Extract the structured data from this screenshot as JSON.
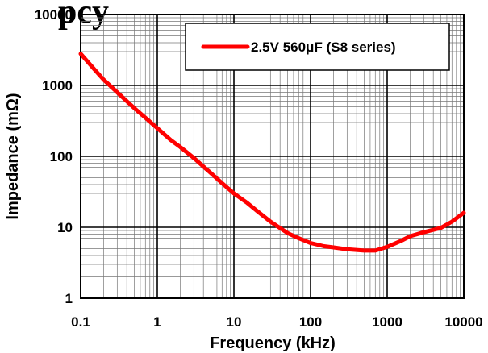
{
  "chart_data": {
    "type": "line",
    "title_fragment": "pcy",
    "xlabel": "Frequency (kHz)",
    "ylabel": "Impedance (mΩ)",
    "x_scale": "log",
    "y_scale": "log",
    "xlim": [
      0.1,
      10000
    ],
    "ylim": [
      1,
      10000
    ],
    "x_ticks": [
      "0.1",
      "1",
      "10",
      "100",
      "1000",
      "10000"
    ],
    "y_ticks": [
      "1",
      "10",
      "100",
      "1000",
      "10000"
    ],
    "grid": true,
    "legend_position": "top-right",
    "series": [
      {
        "name": "2.5V 560μF (S8 series)",
        "color": "#ff0000",
        "x": [
          0.1,
          0.15,
          0.2,
          0.3,
          0.5,
          0.7,
          1,
          1.5,
          2,
          3,
          5,
          7,
          10,
          15,
          20,
          30,
          50,
          70,
          100,
          150,
          200,
          300,
          500,
          700,
          1000,
          1500,
          2000,
          3000,
          5000,
          7000,
          10000
        ],
        "y": [
          2800,
          1700,
          1200,
          800,
          480,
          350,
          250,
          170,
          135,
          95,
          58,
          42,
          30,
          22,
          17,
          12,
          8.3,
          7.0,
          6.0,
          5.4,
          5.2,
          4.9,
          4.7,
          4.7,
          5.3,
          6.4,
          7.5,
          8.5,
          9.8,
          12.0,
          16.0
        ]
      }
    ]
  }
}
